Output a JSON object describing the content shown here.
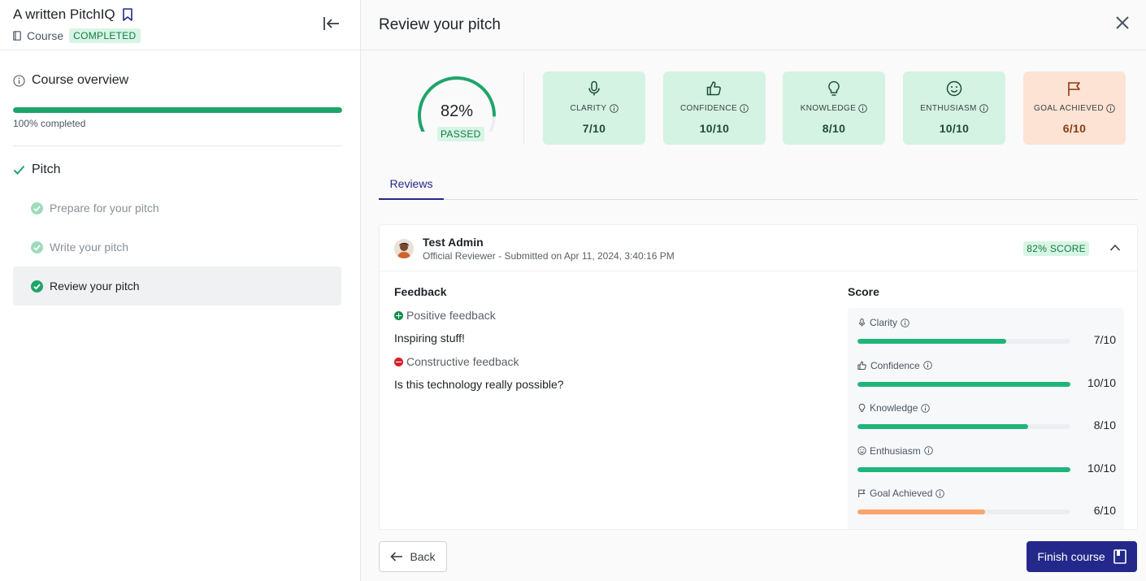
{
  "sidebar": {
    "course_title": "A written PitchIQ",
    "course_type": "Course",
    "status_badge": "COMPLETED",
    "overview_label": "Course overview",
    "progress_value": 100,
    "progress_text": "100% completed",
    "section_label": "Pitch",
    "lessons": [
      {
        "label": "Prepare for your pitch",
        "active": false
      },
      {
        "label": "Write your pitch",
        "active": false
      },
      {
        "label": "Review your pitch",
        "active": true
      }
    ]
  },
  "panel": {
    "title": "Review your pitch",
    "overall": {
      "percent": "82%",
      "value": 82,
      "status": "PASSED"
    },
    "metrics": [
      {
        "label": "CLARITY",
        "value": "7/10",
        "icon": "microphone-icon",
        "tone": "green"
      },
      {
        "label": "CONFIDENCE",
        "value": "10/10",
        "icon": "thumbs-up-icon",
        "tone": "green"
      },
      {
        "label": "KNOWLEDGE",
        "value": "8/10",
        "icon": "lightbulb-icon",
        "tone": "green"
      },
      {
        "label": "ENTHUSIASM",
        "value": "10/10",
        "icon": "smiley-icon",
        "tone": "green"
      },
      {
        "label": "GOAL ACHIEVED",
        "value": "6/10",
        "icon": "flag-icon",
        "tone": "orange"
      }
    ],
    "tabs": [
      {
        "label": "Reviews",
        "active": true
      }
    ],
    "review": {
      "reviewer_name": "Test Admin",
      "reviewer_meta": "Official Reviewer -  Submitted on Apr 11, 2024, 3:40:16 PM",
      "score_badge": "82% SCORE",
      "feedback_title": "Feedback",
      "positive_label": "Positive feedback",
      "positive_text": "Inspiring stuff!",
      "constructive_label": "Constructive feedback",
      "constructive_text": "Is this technology really possible?",
      "score_title": "Score",
      "scores": [
        {
          "label": "Clarity",
          "value": "7/10",
          "fraction": 0.7,
          "icon": "microphone-icon"
        },
        {
          "label": "Confidence",
          "value": "10/10",
          "fraction": 1.0,
          "icon": "thumbs-up-icon"
        },
        {
          "label": "Knowledge",
          "value": "8/10",
          "fraction": 0.8,
          "icon": "lightbulb-icon"
        },
        {
          "label": "Enthusiasm",
          "value": "10/10",
          "fraction": 1.0,
          "icon": "smiley-icon"
        },
        {
          "label": "Goal Achieved",
          "value": "6/10",
          "fraction": 0.6,
          "icon": "flag-icon"
        }
      ]
    },
    "back_label": "Back",
    "finish_label": "Finish course"
  },
  "colors": {
    "accent": "#23288a",
    "success": "#1fa56a",
    "warning": "#fba46b"
  }
}
